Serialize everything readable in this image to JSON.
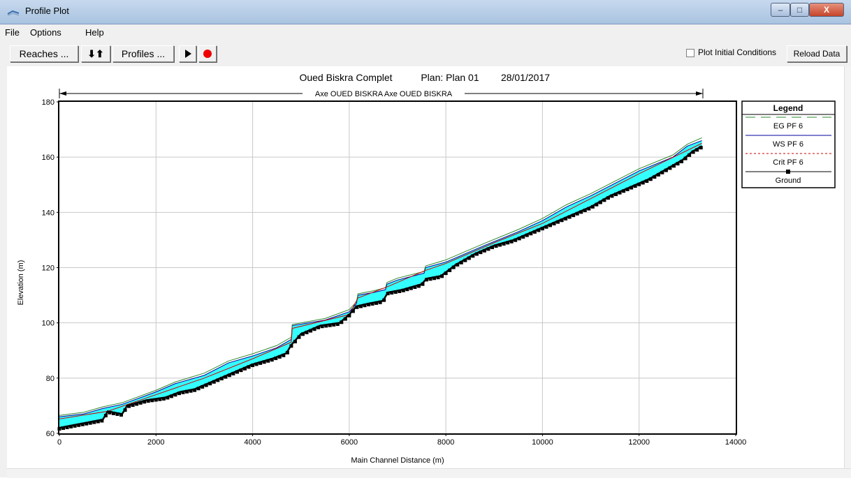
{
  "window": {
    "title": "Profile Plot",
    "minimize": "–",
    "maximize": "□",
    "close": "X"
  },
  "menu": [
    "File",
    "Options",
    "Help"
  ],
  "toolbar": {
    "reaches_label": "Reaches ...",
    "arrows_label": "⬇⬆",
    "profiles_label": "Profiles ...",
    "play_icon": "play-icon",
    "record_icon": "record-icon",
    "plot_initial_label": "Plot Initial Conditions",
    "plot_initial_checked": false,
    "reload_label": "Reload Data"
  },
  "plot": {
    "title_project": "Oued Biskra Complet",
    "title_plan": "Plan: Plan 01",
    "title_date": "28/01/2017",
    "reach_label": "Axe OUED BISKRA Axe OUED BISKRA",
    "legend_title": "Legend",
    "legend": [
      {
        "label": "EG  PF 6",
        "color": "#2e8b2e",
        "style": "dash"
      },
      {
        "label": "WS  PF 6",
        "color": "#0000a0",
        "style": "solid"
      },
      {
        "label": "Crit  PF 6",
        "color": "#cc0000",
        "style": "dot"
      },
      {
        "label": "Ground",
        "color": "#000000",
        "style": "marker"
      }
    ]
  },
  "colors": {
    "water": "#33ffff",
    "ground": "#000000",
    "grid": "#c8c8c8"
  },
  "chart_data": {
    "type": "line",
    "xlabel": "Main Channel Distance (m)",
    "ylabel": "Elevation (m)",
    "xlim": [
      0,
      14000
    ],
    "ylim": [
      60,
      180
    ],
    "xticks": [
      0,
      2000,
      4000,
      6000,
      8000,
      10000,
      12000,
      14000
    ],
    "yticks": [
      60,
      80,
      100,
      120,
      140,
      160,
      180
    ],
    "grid": true,
    "legend_position": "right",
    "series": [
      {
        "name": "WS  PF 6",
        "x": [
          0,
          500,
          900,
          1300,
          2000,
          2400,
          3000,
          3500,
          4000,
          4500,
          4800,
          4820,
          5500,
          6000,
          6150,
          6180,
          6500,
          6750,
          6780,
          7000,
          7550,
          7580,
          8000,
          8800,
          9500,
          10000,
          10500,
          11000,
          12000,
          12700,
          13000,
          13300
        ],
        "y": [
          66,
          67,
          69,
          70.5,
          75,
          78,
          81,
          85.5,
          88,
          91,
          94,
          99,
          101,
          104,
          107,
          110,
          111,
          112,
          114,
          115.5,
          118,
          120,
          122,
          128,
          133,
          137,
          142,
          146,
          155,
          160,
          164,
          166
        ]
      },
      {
        "name": "EG  PF 6",
        "x": [
          0,
          500,
          900,
          1300,
          2000,
          2400,
          3000,
          3500,
          4000,
          4500,
          4800,
          4820,
          5500,
          6000,
          6150,
          6180,
          6500,
          6750,
          6780,
          7000,
          7550,
          7580,
          8000,
          8800,
          9500,
          10000,
          10500,
          11000,
          12000,
          12700,
          13000,
          13300
        ],
        "y": [
          66.5,
          67.6,
          69.6,
          71.1,
          75.6,
          78.6,
          81.8,
          86.2,
          88.8,
          91.8,
          94.8,
          99.4,
          101.6,
          104.8,
          107.6,
          110.5,
          111.6,
          112.7,
          114.6,
          116.2,
          118.6,
          120.6,
          122.8,
          128.8,
          133.8,
          137.8,
          142.8,
          146.8,
          155.8,
          160.8,
          164.7,
          167
        ]
      },
      {
        "name": "Crit  PF 6",
        "x": [
          0,
          1000,
          2000,
          3000,
          4000,
          4800,
          4820,
          6000,
          6180,
          6780,
          7580,
          8000,
          9000,
          10000,
          11000,
          12000,
          13300
        ],
        "y": [
          65.2,
          68,
          74,
          80,
          87,
          93,
          98,
          103,
          109,
          113,
          119,
          121.5,
          129,
          136,
          145,
          154,
          165
        ]
      },
      {
        "name": "Ground",
        "x": [
          0,
          300,
          600,
          900,
          1000,
          1300,
          1400,
          1800,
          2200,
          2500,
          2800,
          3200,
          3600,
          4000,
          4400,
          4700,
          4800,
          5000,
          5400,
          5800,
          6000,
          6150,
          6400,
          6700,
          6800,
          7100,
          7500,
          7600,
          7900,
          8200,
          8600,
          9000,
          9400,
          9800,
          10200,
          10600,
          11000,
          11400,
          11800,
          12200,
          12600,
          12900,
          13100,
          13300
        ],
        "y": [
          62,
          63,
          64,
          65,
          68,
          67,
          70,
          72,
          73,
          75,
          76,
          79,
          82,
          85,
          87,
          89,
          92,
          96,
          99,
          100,
          103,
          106,
          107,
          108,
          111,
          112,
          114,
          116,
          117,
          121,
          125,
          128,
          130,
          133,
          136,
          139,
          142,
          146,
          149,
          152,
          156,
          159,
          162,
          164
        ]
      }
    ]
  }
}
